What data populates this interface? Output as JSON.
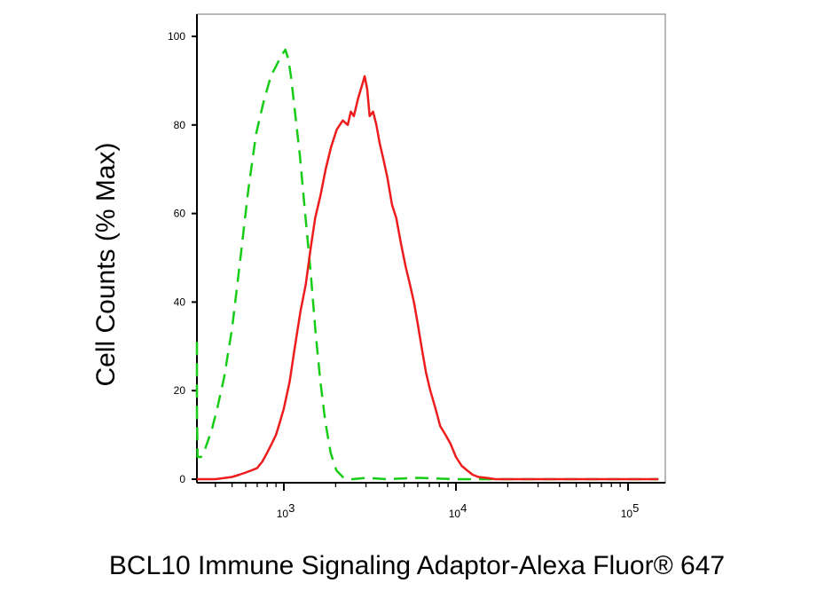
{
  "chart_data": {
    "type": "line",
    "title": "",
    "xlabel": "BCL10 Immune Signaling Adaptor-Alexa Fluor® 647",
    "ylabel": "Cell Counts (% Max)",
    "x_scale": "log",
    "xlim": [
      300,
      150000
    ],
    "ylim": [
      0,
      105
    ],
    "x_ticks": [
      {
        "value": 1000,
        "base": "10",
        "exp": "3"
      },
      {
        "value": 10000,
        "base": "10",
        "exp": "4"
      },
      {
        "value": 100000,
        "base": "10",
        "exp": "5"
      }
    ],
    "y_ticks": [
      0,
      20,
      40,
      60,
      80,
      100
    ],
    "y_tick_labels": [
      "0",
      "20",
      "40",
      "60",
      "80",
      "100"
    ],
    "grid": false,
    "legend": "none",
    "series": [
      {
        "color": "#16cc16",
        "style": "dashed",
        "x": [
          300,
          305,
          315,
          330,
          350,
          380,
          410,
          450,
          500,
          560,
          620,
          690,
          760,
          840,
          920,
          980,
          1020,
          1060,
          1100,
          1160,
          1240,
          1330,
          1430,
          1530,
          1630,
          1740,
          1870,
          2020,
          2200,
          2500,
          3000,
          4000,
          6000,
          10000,
          20000,
          50000,
          100000,
          150000
        ],
        "y": [
          31,
          15,
          5,
          5,
          7,
          11,
          16,
          23,
          34,
          50,
          65,
          78,
          85,
          91,
          94,
          96,
          97,
          95,
          91,
          83,
          73,
          60,
          47,
          33,
          22,
          13,
          6,
          2,
          0.5,
          0,
          0.3,
          0,
          0.3,
          0,
          0,
          0,
          0,
          0
        ]
      },
      {
        "color": "#ee1c1c",
        "style": "solid",
        "x": [
          300,
          400,
          500,
          550,
          600,
          650,
          700,
          750,
          800,
          850,
          900,
          950,
          1000,
          1080,
          1160,
          1250,
          1340,
          1430,
          1520,
          1630,
          1750,
          1880,
          2030,
          2200,
          2350,
          2450,
          2550,
          2700,
          2850,
          2950,
          3050,
          3150,
          3300,
          3450,
          3600,
          3800,
          4000,
          4250,
          4500,
          4800,
          5100,
          5400,
          5700,
          6000,
          6300,
          6700,
          7100,
          7600,
          8100,
          8700,
          9300,
          10000,
          10800,
          11600,
          12500,
          13500,
          15000,
          17000,
          20000,
          30000,
          60000,
          100000,
          150000
        ],
        "y": [
          0,
          0,
          0.5,
          1,
          1.5,
          2,
          2.5,
          4,
          6,
          8,
          10,
          13,
          16,
          22,
          30,
          38,
          44,
          52,
          59,
          64,
          70,
          75,
          79,
          81,
          80,
          83,
          82,
          86,
          89,
          91,
          88,
          82,
          83,
          80,
          76,
          72,
          68,
          62,
          59,
          53,
          48,
          44,
          40,
          35,
          30,
          24,
          20,
          16,
          12,
          10,
          8,
          5,
          3,
          2,
          1,
          0.5,
          0.3,
          0,
          0,
          0,
          0,
          0,
          0
        ]
      }
    ]
  }
}
